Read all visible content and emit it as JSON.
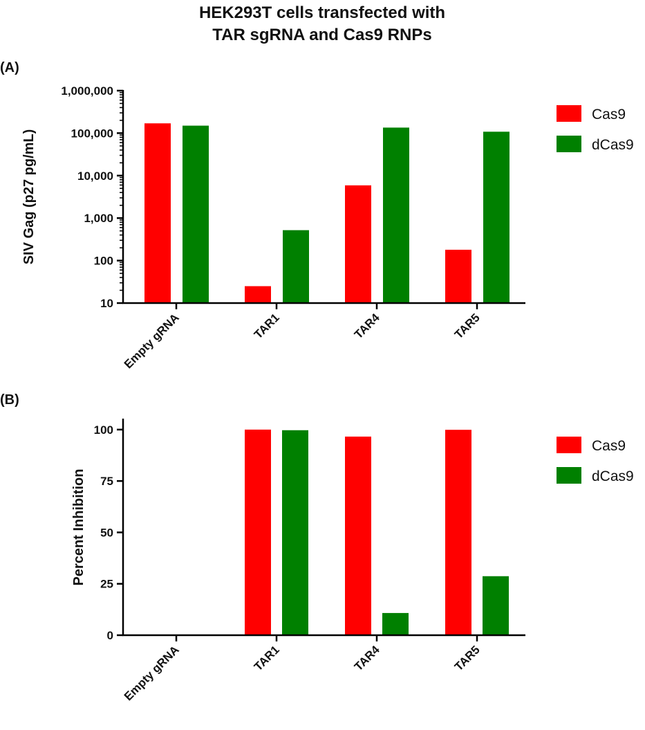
{
  "title_lines": [
    "HEK293T cells transfected with",
    "TAR sgRNA and Cas9 RNPs"
  ],
  "colors": {
    "Cas9": "#ff0000",
    "dCas9": "#008000",
    "axis": "#000000"
  },
  "chart_data": [
    {
      "panel": "(A)",
      "type": "bar",
      "scale": "log",
      "ylabel": "SIV Gag (p27 pg/mL)",
      "ylim": [
        10,
        1000000
      ],
      "yticks": [
        10,
        100,
        1000,
        10000,
        100000,
        1000000
      ],
      "ytick_labels": [
        "10",
        "100",
        "1,000",
        "10,000",
        "100,000",
        "1,000,000"
      ],
      "categories": [
        "Empty gRNA",
        "TAR1",
        "TAR4",
        "TAR5"
      ],
      "series": [
        {
          "name": "Cas9",
          "values": [
            170000,
            25,
            5900,
            180
          ]
        },
        {
          "name": "dCas9",
          "values": [
            150000,
            520,
            135000,
            108000
          ]
        }
      ],
      "legend": "right"
    },
    {
      "panel": "(B)",
      "type": "bar",
      "scale": "linear",
      "ylabel": "Percent Inhibition",
      "ylim": [
        0,
        105
      ],
      "yticks": [
        0,
        25,
        50,
        75,
        100
      ],
      "ytick_labels": [
        "0",
        "25",
        "50",
        "75",
        "100"
      ],
      "categories": [
        "Empty gRNA",
        "TAR1",
        "TAR4",
        "TAR5"
      ],
      "series": [
        {
          "name": "Cas9",
          "values": [
            0,
            100,
            96.6,
            99.9
          ]
        },
        {
          "name": "dCas9",
          "values": [
            0,
            99.7,
            10.8,
            28.7
          ]
        }
      ],
      "legend": "right"
    }
  ]
}
